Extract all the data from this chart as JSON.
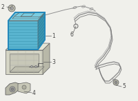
{
  "bg_color": "#f0f0eb",
  "battery_front": "#5ab5d0",
  "battery_top": "#7acce0",
  "battery_right": "#3a95b0",
  "battery_outline": "#2288bb",
  "tray_front": "#d5d5c5",
  "tray_top": "#e5e5d5",
  "tray_right": "#b8b8a8",
  "tray_inner": "#c8c8b8",
  "line_color": "#606060",
  "label_color": "#444444",
  "wire_color": "#909090",
  "wire_color2": "#777777",
  "part_color": "#b8b8a8",
  "white": "#ffffff"
}
